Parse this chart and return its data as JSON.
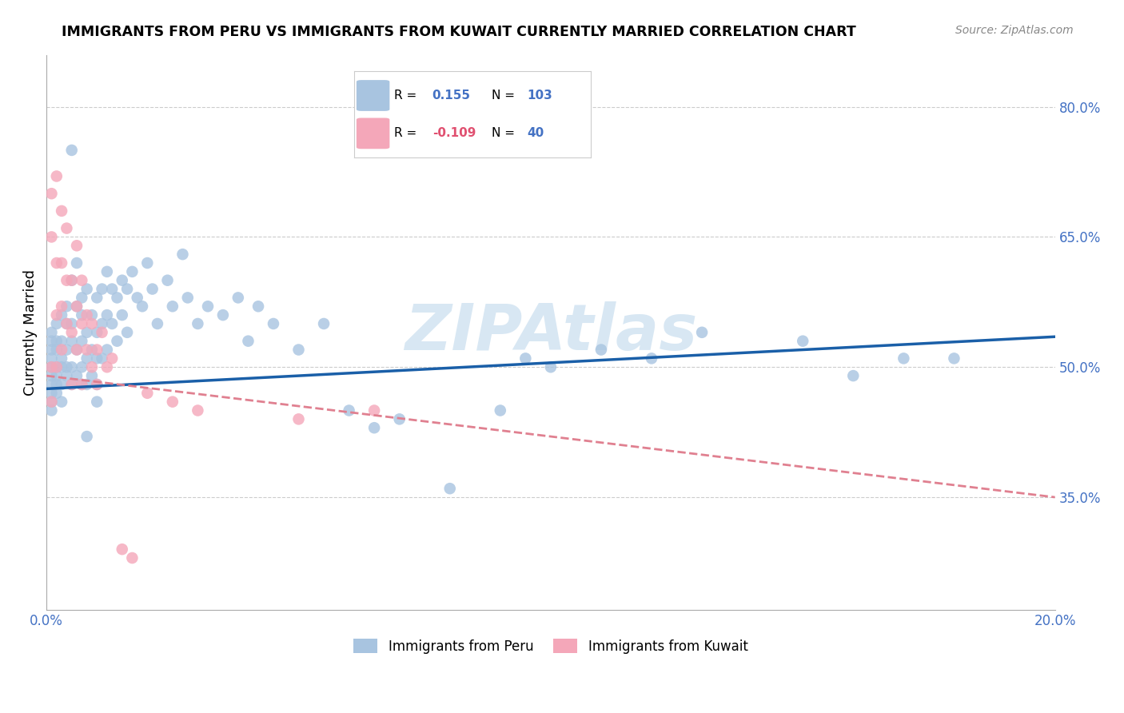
{
  "title": "IMMIGRANTS FROM PERU VS IMMIGRANTS FROM KUWAIT CURRENTLY MARRIED CORRELATION CHART",
  "source": "Source: ZipAtlas.com",
  "ylabel": "Currently Married",
  "right_ytick_labels": [
    "80.0%",
    "65.0%",
    "50.0%",
    "35.0%"
  ],
  "right_ytick_values": [
    0.8,
    0.65,
    0.5,
    0.35
  ],
  "xmin": 0.0,
  "xmax": 0.2,
  "ymin": 0.22,
  "ymax": 0.86,
  "xtick_values": [
    0.0,
    0.02,
    0.04,
    0.06,
    0.08,
    0.1,
    0.12,
    0.14,
    0.16,
    0.18,
    0.2
  ],
  "peru_R": 0.155,
  "peru_N": 103,
  "kuwait_R": -0.109,
  "kuwait_N": 40,
  "peru_color": "#a8c4e0",
  "kuwait_color": "#f4a7b9",
  "peru_line_color": "#1a5fa8",
  "kuwait_line_color": "#e08090",
  "legend_label_peru": "Immigrants from Peru",
  "legend_label_kuwait": "Immigrants from Kuwait",
  "watermark": "ZIPAtlas",
  "peru_line_x": [
    0.0,
    0.2
  ],
  "peru_line_y": [
    0.475,
    0.535
  ],
  "kuwait_line_x": [
    0.0,
    0.1
  ],
  "kuwait_line_y": [
    0.49,
    0.445
  ],
  "peru_scatter_x": [
    0.001,
    0.001,
    0.001,
    0.001,
    0.001,
    0.001,
    0.001,
    0.001,
    0.001,
    0.001,
    0.002,
    0.002,
    0.002,
    0.002,
    0.002,
    0.002,
    0.002,
    0.003,
    0.003,
    0.003,
    0.003,
    0.003,
    0.003,
    0.004,
    0.004,
    0.004,
    0.004,
    0.004,
    0.005,
    0.005,
    0.005,
    0.005,
    0.005,
    0.006,
    0.006,
    0.006,
    0.006,
    0.007,
    0.007,
    0.007,
    0.007,
    0.007,
    0.008,
    0.008,
    0.008,
    0.008,
    0.009,
    0.009,
    0.009,
    0.01,
    0.01,
    0.01,
    0.01,
    0.011,
    0.011,
    0.011,
    0.012,
    0.012,
    0.012,
    0.013,
    0.013,
    0.014,
    0.014,
    0.015,
    0.015,
    0.016,
    0.016,
    0.017,
    0.018,
    0.019,
    0.02,
    0.021,
    0.022,
    0.024,
    0.025,
    0.027,
    0.028,
    0.03,
    0.032,
    0.035,
    0.038,
    0.04,
    0.042,
    0.045,
    0.05,
    0.055,
    0.06,
    0.065,
    0.07,
    0.08,
    0.09,
    0.095,
    0.1,
    0.11,
    0.12,
    0.13,
    0.15,
    0.16,
    0.17,
    0.18,
    0.005,
    0.008,
    0.01
  ],
  "peru_scatter_y": [
    0.5,
    0.52,
    0.48,
    0.49,
    0.47,
    0.51,
    0.53,
    0.46,
    0.54,
    0.45,
    0.55,
    0.5,
    0.48,
    0.52,
    0.47,
    0.53,
    0.49,
    0.56,
    0.51,
    0.48,
    0.53,
    0.5,
    0.46,
    0.57,
    0.52,
    0.49,
    0.55,
    0.5,
    0.6,
    0.55,
    0.5,
    0.48,
    0.53,
    0.62,
    0.57,
    0.52,
    0.49,
    0.58,
    0.53,
    0.5,
    0.56,
    0.48,
    0.59,
    0.54,
    0.51,
    0.48,
    0.56,
    0.52,
    0.49,
    0.58,
    0.54,
    0.51,
    0.48,
    0.59,
    0.55,
    0.51,
    0.61,
    0.56,
    0.52,
    0.59,
    0.55,
    0.58,
    0.53,
    0.6,
    0.56,
    0.59,
    0.54,
    0.61,
    0.58,
    0.57,
    0.62,
    0.59,
    0.55,
    0.6,
    0.57,
    0.63,
    0.58,
    0.55,
    0.57,
    0.56,
    0.58,
    0.53,
    0.57,
    0.55,
    0.52,
    0.55,
    0.45,
    0.43,
    0.44,
    0.36,
    0.45,
    0.51,
    0.5,
    0.52,
    0.51,
    0.54,
    0.53,
    0.49,
    0.51,
    0.51,
    0.75,
    0.42,
    0.46
  ],
  "kuwait_scatter_x": [
    0.001,
    0.001,
    0.001,
    0.001,
    0.002,
    0.002,
    0.002,
    0.002,
    0.003,
    0.003,
    0.003,
    0.003,
    0.004,
    0.004,
    0.004,
    0.005,
    0.005,
    0.005,
    0.006,
    0.006,
    0.006,
    0.007,
    0.007,
    0.007,
    0.008,
    0.008,
    0.009,
    0.009,
    0.01,
    0.01,
    0.011,
    0.012,
    0.013,
    0.015,
    0.017,
    0.02,
    0.025,
    0.03,
    0.05,
    0.065
  ],
  "kuwait_scatter_y": [
    0.5,
    0.46,
    0.7,
    0.65,
    0.62,
    0.56,
    0.5,
    0.72,
    0.68,
    0.62,
    0.57,
    0.52,
    0.66,
    0.6,
    0.55,
    0.6,
    0.54,
    0.48,
    0.64,
    0.57,
    0.52,
    0.6,
    0.55,
    0.48,
    0.56,
    0.52,
    0.55,
    0.5,
    0.52,
    0.48,
    0.54,
    0.5,
    0.51,
    0.29,
    0.28,
    0.47,
    0.46,
    0.45,
    0.44,
    0.45
  ]
}
